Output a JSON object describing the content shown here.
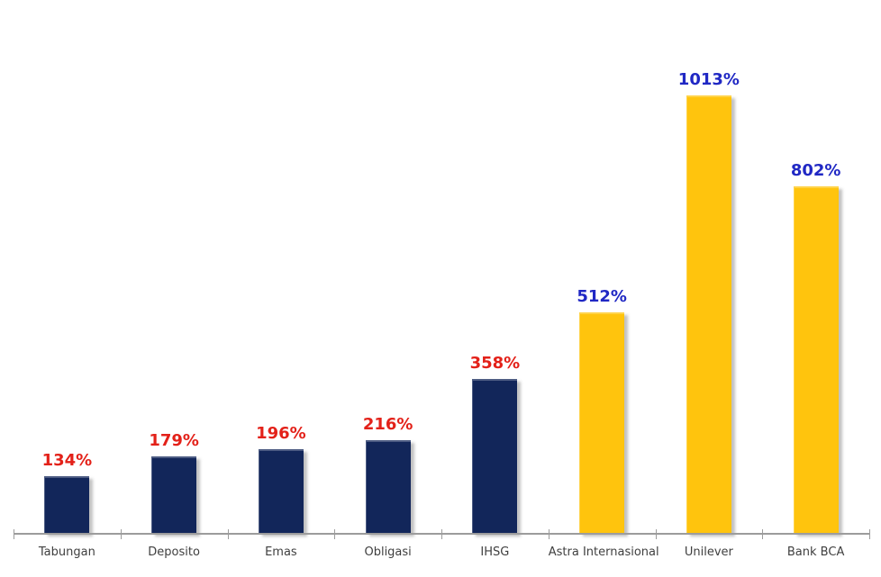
{
  "chart_data": {
    "type": "bar",
    "title": "",
    "xlabel": "",
    "ylabel": "",
    "unit": "%",
    "grid": false,
    "legend": null,
    "ylim": [
      0,
      1100
    ],
    "categories": [
      "Tabungan",
      "Deposito",
      "Emas",
      "Obligasi",
      "IHSG",
      "Astra Internasional",
      "Unilever",
      "Bank BCA"
    ],
    "values": [
      134,
      179,
      196,
      216,
      358,
      512,
      1013,
      802
    ],
    "value_labels": [
      "134%",
      "179%",
      "196%",
      "216%",
      "358%",
      "512%",
      "1013%",
      "802%"
    ],
    "bar_color_roles": [
      "navy",
      "navy",
      "navy",
      "navy",
      "navy",
      "gold",
      "gold",
      "gold"
    ],
    "label_color_roles": [
      "red",
      "red",
      "red",
      "red",
      "red",
      "blue",
      "blue",
      "blue"
    ],
    "colors": {
      "navy": "#12265A",
      "gold": "#FFC40D",
      "red": "#E32119",
      "blue": "#2028C4",
      "axis": "#9C9C9C",
      "category_label": "#3F3F3F",
      "background": "#FFFFFF"
    }
  }
}
